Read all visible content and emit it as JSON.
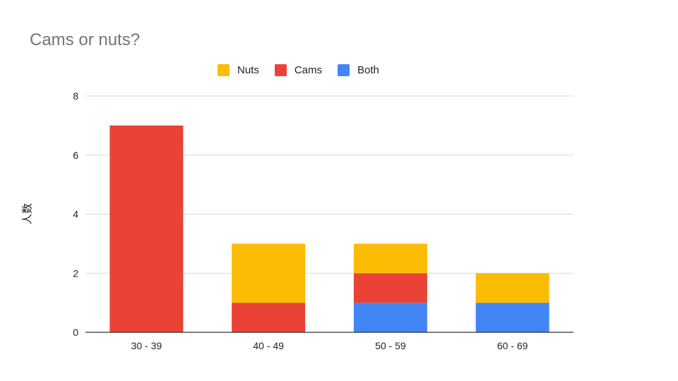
{
  "chart_data": {
    "type": "bar",
    "stacked": true,
    "title": "Cams or nuts?",
    "xlabel": "",
    "ylabel": "人数",
    "ylim": [
      0,
      8
    ],
    "yticks": [
      0,
      2,
      4,
      6,
      8
    ],
    "grid": true,
    "legend_position": "top",
    "categories": [
      "30 - 39",
      "40 - 49",
      "50 - 59",
      "60 - 69"
    ],
    "series": [
      {
        "name": "Both",
        "color": "#4285f4",
        "values": [
          0,
          0,
          1,
          1
        ]
      },
      {
        "name": "Cams",
        "color": "#ea4335",
        "values": [
          7,
          1,
          1,
          0
        ]
      },
      {
        "name": "Nuts",
        "color": "#fbbc04",
        "values": [
          0,
          2,
          1,
          1
        ]
      }
    ],
    "legend_order": [
      "Nuts",
      "Cams",
      "Both"
    ]
  }
}
